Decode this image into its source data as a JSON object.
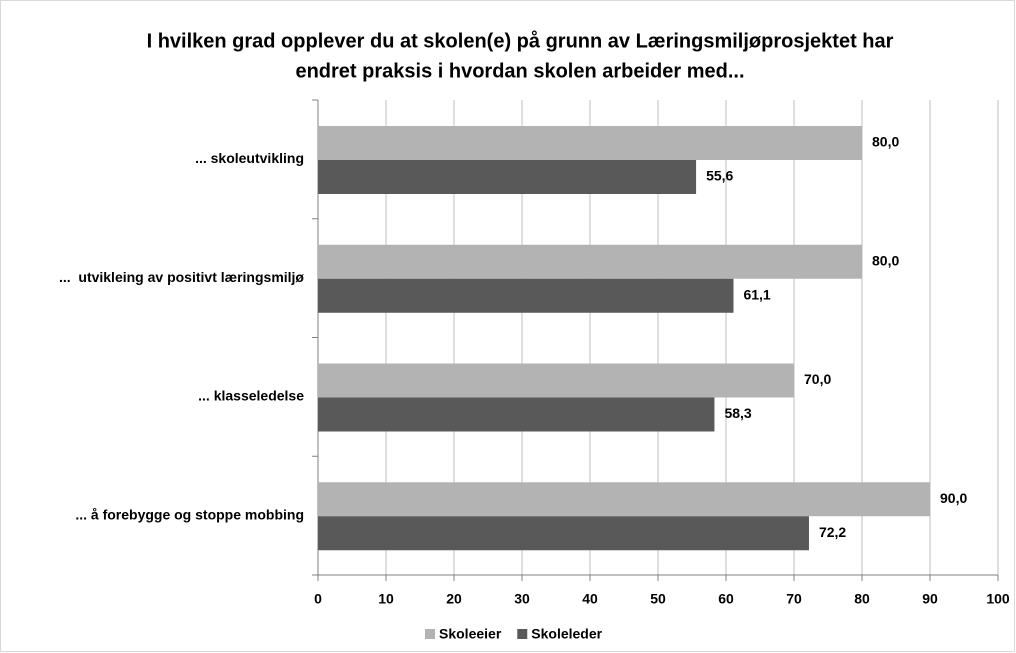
{
  "chart_data": {
    "type": "bar",
    "orientation": "horizontal",
    "title": [
      "I hvilken grad opplever du at skolen(e) på grunn av Læringsmiljøprosjektet har",
      "endret praksis i hvordan skolen arbeider med..."
    ],
    "categories": [
      "... skoleutvikling",
      "...  utvikleing av positivt læringsmiljø",
      "... klasseledelse",
      "... å forebygge og stoppe mobbing"
    ],
    "series": [
      {
        "name": "Skoleeier",
        "color": "#b3b3b3",
        "values": [
          80,
          80,
          70,
          90
        ],
        "value_labels": [
          "80,0",
          "80,0",
          "70,0",
          "90,0"
        ]
      },
      {
        "name": "Skoleleder",
        "color": "#595959",
        "values": [
          55.6,
          61.1,
          58.3,
          72.2
        ],
        "value_labels": [
          "55,6",
          "61,1",
          "58,3",
          "72,2"
        ]
      }
    ],
    "xlim": [
      0,
      100
    ],
    "xticks": [
      0,
      10,
      20,
      30,
      40,
      50,
      60,
      70,
      80,
      90,
      100
    ],
    "grid": true,
    "legend": "bottom"
  }
}
